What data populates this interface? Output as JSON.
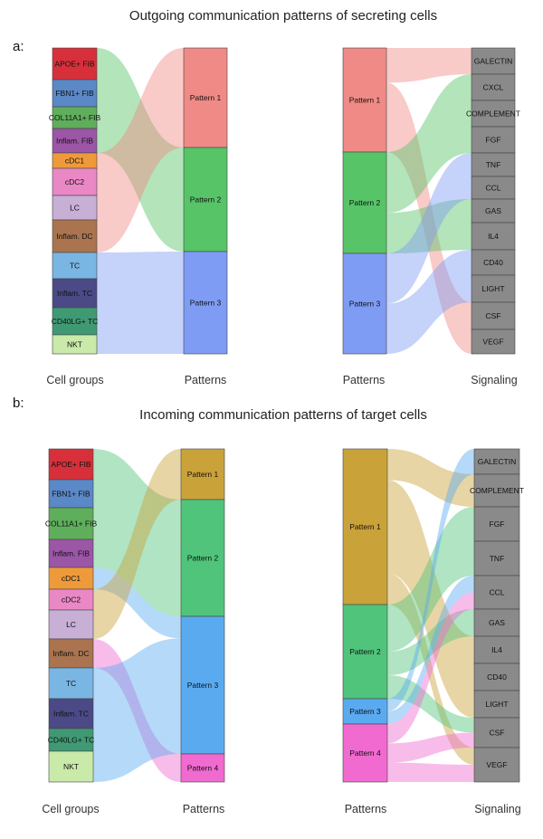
{
  "panel_a": {
    "tag": "a:",
    "title": "Outgoing communication patterns of secreting cells",
    "axes": {
      "cells": "Cell groups",
      "patterns_left": "Patterns",
      "patterns_right": "Patterns",
      "signaling": "Signaling"
    }
  },
  "panel_b": {
    "tag": "b:",
    "title": "Incoming communication patterns of target cells",
    "axes": {
      "cells": "Cell groups",
      "patterns_left": "Patterns",
      "patterns_right": "Patterns",
      "signaling": "Signaling"
    }
  },
  "outgoing": {
    "cells": [
      {
        "name": "APOE+ FIB",
        "color": "#d7303b"
      },
      {
        "name": "FBN1+ FIB",
        "color": "#5b88c6"
      },
      {
        "name": "COL11A1+ FIB",
        "color": "#5fae5b"
      },
      {
        "name": "Inflam. FIB",
        "color": "#9b56a6"
      },
      {
        "name": "cDC1",
        "color": "#ef9a3a"
      },
      {
        "name": "cDC2",
        "color": "#ea88c6"
      },
      {
        "name": "LC",
        "color": "#c8afd6"
      },
      {
        "name": "Inflam. DC",
        "color": "#a9744f"
      },
      {
        "name": "TC",
        "color": "#7ab6e3"
      },
      {
        "name": "Inflam. TC",
        "color": "#4b4a86"
      },
      {
        "name": "CD40LG+ TC",
        "color": "#3f9a74"
      },
      {
        "name": "NKT",
        "color": "#c9eaa9"
      }
    ],
    "patterns": [
      {
        "name": "Pattern 1",
        "color": "#f08a86"
      },
      {
        "name": "Pattern 2",
        "color": "#57c467"
      },
      {
        "name": "Pattern 3",
        "color": "#7f9cf5"
      }
    ],
    "signaling": [
      "GALECTIN",
      "CXCL",
      "COMPLEMENT",
      "FGF",
      "TNF",
      "CCL",
      "GAS",
      "IL4",
      "CD40",
      "LIGHT",
      "CSF",
      "VEGF"
    ],
    "signaling_color": "#8a8a8a"
  },
  "incoming": {
    "cells": [
      {
        "name": "APOE+ FIB",
        "color": "#d7303b"
      },
      {
        "name": "FBN1+ FIB",
        "color": "#5b88c6"
      },
      {
        "name": "COL11A1+ FIB",
        "color": "#5fae5b"
      },
      {
        "name": "Inflam. FIB",
        "color": "#9b56a6"
      },
      {
        "name": "cDC1",
        "color": "#ef9a3a"
      },
      {
        "name": "cDC2",
        "color": "#ea88c6"
      },
      {
        "name": "LC",
        "color": "#c8afd6"
      },
      {
        "name": "Inflam. DC",
        "color": "#a9744f"
      },
      {
        "name": "TC",
        "color": "#7ab6e3"
      },
      {
        "name": "Inflam. TC",
        "color": "#4b4a86"
      },
      {
        "name": "CD40LG+ TC",
        "color": "#3f9a74"
      },
      {
        "name": "NKT",
        "color": "#c9eaa9"
      }
    ],
    "patterns": [
      {
        "name": "Pattern 1",
        "color": "#caa23a"
      },
      {
        "name": "Pattern 2",
        "color": "#4fc47a"
      },
      {
        "name": "Pattern 3",
        "color": "#5aaaf0"
      },
      {
        "name": "Pattern 4",
        "color": "#f06ad0"
      }
    ],
    "signaling": [
      "GALECTIN",
      "COMPLEMENT",
      "FGF",
      "TNF",
      "CCL",
      "GAS",
      "IL4",
      "CD40",
      "LIGHT",
      "CSF",
      "VEGF"
    ],
    "signaling_color": "#8a8a8a"
  }
}
